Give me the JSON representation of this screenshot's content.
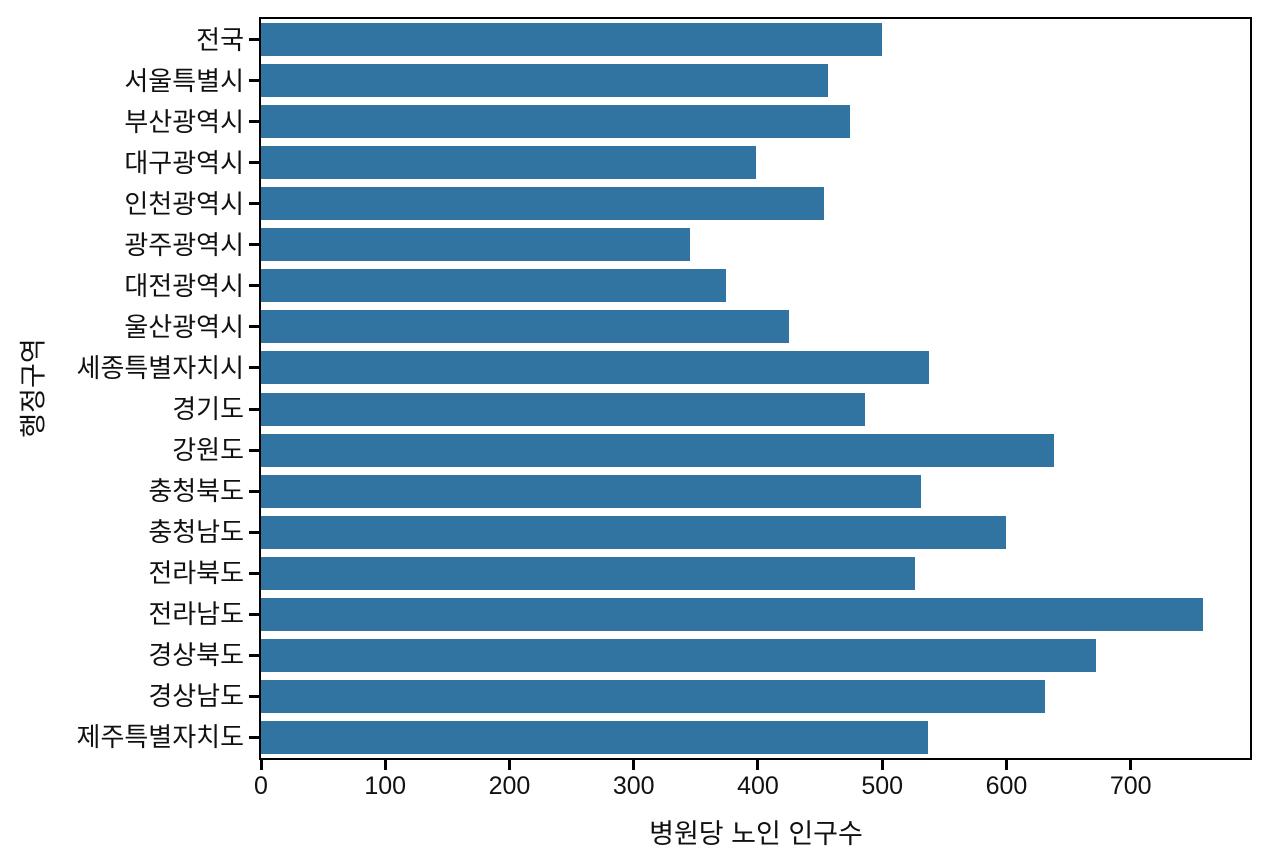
{
  "figure": {
    "background": "#ffffff",
    "text_color": "#111111",
    "spine_color": "#000000"
  },
  "chart_data": {
    "type": "bar",
    "orientation": "horizontal",
    "xlabel": "병원당 노인 인구수",
    "ylabel": "행정구역",
    "categories": [
      "전국",
      "서울특별시",
      "부산광역시",
      "대구광역시",
      "인천광역시",
      "광주광역시",
      "대전광역시",
      "울산광역시",
      "세종특별자치시",
      "경기도",
      "강원도",
      "충청북도",
      "충청남도",
      "전라북도",
      "전라남도",
      "경상북도",
      "경상남도",
      "제주특별자치도"
    ],
    "values": [
      500,
      456,
      474,
      398,
      453,
      345,
      374,
      425,
      538,
      486,
      638,
      531,
      600,
      526,
      758,
      672,
      631,
      537
    ],
    "xticks": [
      0,
      100,
      200,
      300,
      400,
      500,
      600,
      700
    ],
    "xlim": [
      0,
      796
    ],
    "bar_color": "#3274a1",
    "grid": false,
    "legend_position": "none"
  }
}
